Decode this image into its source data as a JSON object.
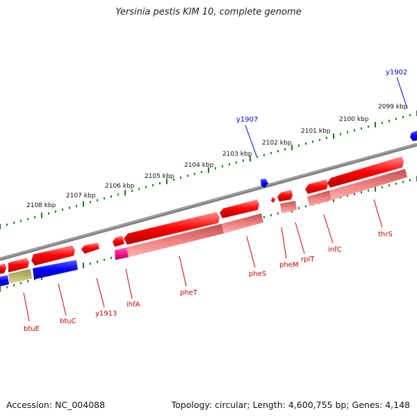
{
  "title": "Yersinia pestis KIM 10, complete genome",
  "accession": "Accession: NC_004088",
  "summary": "Topology: circular; Length: 4,600,755 bp; Genes: 4,148",
  "colors": {
    "backbone": "#808080",
    "forward": "#ff0000",
    "rna": "#f08080",
    "magenta": "#ff1493",
    "reverse": "#0000ff",
    "olive": "#bdb76b",
    "ruler": "#1a7a1a",
    "gene_label": "#cc0000",
    "blue_label": "#0000cc"
  },
  "ruler_labels": [
    "2108 kbp",
    "2107 kbp",
    "2106 kbp",
    "2105 kbp",
    "2104 kbp",
    "2103 kbp",
    "2102 kbp",
    "2101 kbp",
    "2100 kbp",
    "2099 kbp"
  ],
  "gene_labels": [
    "btuE",
    "btuC",
    "y1913",
    "ihfA",
    "pheT",
    "pheS",
    "pheM",
    "rplT",
    "infC",
    "thrS"
  ],
  "blue_labels": [
    "y1907",
    "y1902"
  ]
}
